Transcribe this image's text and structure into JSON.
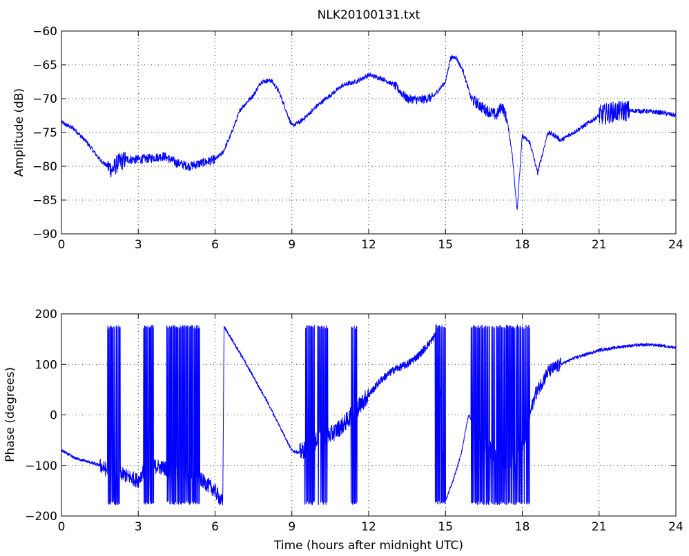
{
  "figure": {
    "title": "NLK20100131.txt"
  },
  "chart_data": [
    {
      "type": "line",
      "xlabel": "",
      "ylabel": "Amplitude (dB)",
      "xlim": [
        0,
        24
      ],
      "ylim": [
        -90,
        -60
      ],
      "xticks": [
        0,
        3,
        6,
        9,
        12,
        15,
        18,
        21,
        24
      ],
      "xtick_labels": [
        "0",
        "3",
        "6",
        "9",
        "12",
        "15",
        "18",
        "21",
        "24"
      ],
      "yticks": [
        -90,
        -85,
        -80,
        -75,
        -70,
        -65,
        -60
      ],
      "ytick_labels": [
        "−90",
        "−85",
        "−80",
        "−75",
        "−70",
        "−65",
        "−60"
      ],
      "grid": true,
      "line_color": "#0000ff",
      "series": [
        {
          "x": [
            0,
            0.5,
            1.0,
            1.5,
            1.8,
            2.0,
            2.2,
            2.5,
            3.0,
            3.5,
            4.0,
            4.5,
            5.0,
            5.5,
            6.0,
            6.3,
            6.6,
            7.0,
            7.5,
            7.8,
            8.2,
            8.5,
            8.8,
            9.0,
            9.3,
            9.6,
            10.0,
            10.5,
            11.0,
            11.5,
            12.0,
            12.5,
            13.0,
            13.5,
            14.0,
            14.5,
            15.0,
            15.2,
            15.4,
            15.7,
            16.0,
            16.5,
            17.0,
            17.2,
            17.4,
            17.6,
            17.8,
            18.0,
            18.3,
            18.6,
            18.8,
            19.0,
            19.3,
            19.5,
            20.0,
            20.5,
            21.0,
            21.5,
            22.0,
            22.5,
            23.0,
            23.5,
            24.0
          ],
          "y": [
            -73.5,
            -74.5,
            -76.5,
            -79,
            -80,
            -80.5,
            -79.5,
            -79,
            -79,
            -78.8,
            -78.5,
            -79.5,
            -80,
            -79.5,
            -79,
            -78,
            -75.5,
            -71.5,
            -69.5,
            -67.5,
            -67.3,
            -69,
            -72,
            -74,
            -73.5,
            -72.5,
            -71,
            -69.5,
            -68,
            -67.5,
            -66.5,
            -67,
            -68,
            -70,
            -70.2,
            -69.8,
            -67.5,
            -64,
            -63.8,
            -66,
            -70,
            -71.5,
            -72.5,
            -71,
            -73,
            -78,
            -86.5,
            -75.5,
            -76.5,
            -81,
            -78,
            -75,
            -75.5,
            -76.2,
            -75,
            -73.8,
            -72.5,
            -72,
            -71.8,
            -71.8,
            -71.9,
            -72.1,
            -72.5
          ]
        }
      ]
    },
    {
      "type": "line",
      "xlabel": "Time (hours after midnight UTC)",
      "ylabel": "Phase (degrees)",
      "xlim": [
        0,
        24
      ],
      "ylim": [
        -200,
        200
      ],
      "xticks": [
        0,
        3,
        6,
        9,
        12,
        15,
        18,
        21,
        24
      ],
      "xtick_labels": [
        "0",
        "3",
        "6",
        "9",
        "12",
        "15",
        "18",
        "21",
        "24"
      ],
      "yticks": [
        -200,
        -100,
        0,
        100,
        200
      ],
      "ytick_labels": [
        "−200",
        "−100",
        "0",
        "100",
        "200"
      ],
      "grid": true,
      "line_color": "#0000ff",
      "series": [
        {
          "x": [
            0,
            0.5,
            1.0,
            1.5,
            1.8,
            2.0,
            2.5,
            3.0,
            3.2,
            3.5,
            4.0,
            4.5,
            5.0,
            5.5,
            6.0,
            6.3,
            6.35,
            7.0,
            8.0,
            9.0,
            9.3,
            9.7,
            10.0,
            10.5,
            11.0,
            11.5,
            12.0,
            12.5,
            13.0,
            13.5,
            14.0,
            14.5,
            14.7,
            15.0,
            15.3,
            15.6,
            15.9,
            16.5,
            17.0,
            17.5,
            18.0,
            18.5,
            19.0,
            19.5,
            20.0,
            20.5,
            21.0,
            21.5,
            22.0,
            22.5,
            23.0,
            23.5,
            24.0
          ],
          "y": [
            -70,
            -85,
            -92,
            -100,
            -110,
            -110,
            -120,
            -130,
            -110,
            -100,
            -105,
            -110,
            -115,
            -130,
            -150,
            -175,
            175,
            120,
            30,
            -70,
            -75,
            -60,
            -50,
            -40,
            -20,
            10,
            40,
            70,
            90,
            100,
            120,
            150,
            170,
            -170,
            -130,
            -80,
            0,
            -50,
            -90,
            -100,
            -60,
            40,
            85,
            100,
            112,
            120,
            128,
            132,
            136,
            138,
            139,
            137,
            133
          ]
        }
      ],
      "wrap_regions_hours": [
        [
          1.8,
          2.3
        ],
        [
          3.2,
          3.6
        ],
        [
          4.1,
          5.4
        ],
        [
          9.5,
          9.9
        ],
        [
          10.0,
          10.4
        ],
        [
          11.3,
          11.55
        ],
        [
          14.6,
          15.0
        ],
        [
          16.0,
          18.3
        ]
      ]
    }
  ]
}
